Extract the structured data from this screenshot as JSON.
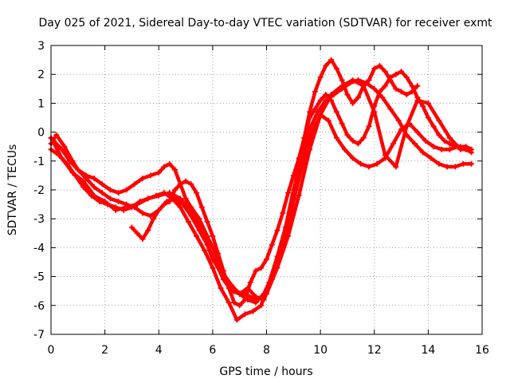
{
  "chart_data": {
    "type": "scatter",
    "title": "Day 025 of 2021, Sidereal Day-to-day VTEC variation (SDTVAR) for receiver exmt",
    "xlabel": "GPS time / hours",
    "ylabel": "SDTVAR / TECUs",
    "xlim": [
      0,
      16
    ],
    "ylim": [
      -7,
      3
    ],
    "xticks": [
      0,
      2,
      4,
      6,
      8,
      10,
      12,
      14,
      16
    ],
    "yticks": [
      -7,
      -6,
      -5,
      -4,
      -3,
      -2,
      -1,
      0,
      1,
      2,
      3
    ],
    "grid": true,
    "marker": "plus",
    "color": "#ff0000",
    "series": [
      {
        "x": [
          0.0,
          0.2,
          0.5,
          0.8,
          1.0,
          1.3,
          1.6,
          1.9,
          2.2,
          2.5,
          2.8,
          3.1,
          3.4,
          3.7,
          4.0,
          4.2,
          4.4,
          4.6,
          4.8,
          5.0,
          5.2,
          5.5,
          5.8,
          6.1,
          6.4,
          6.7,
          7.0,
          7.3,
          7.6,
          7.9,
          8.2,
          8.5,
          8.8,
          9.0,
          9.2,
          9.4,
          9.6,
          9.8,
          10.0,
          10.2,
          10.4,
          10.6,
          10.8,
          11.0,
          11.2,
          11.4,
          11.6,
          11.8,
          12.0,
          12.2,
          12.4,
          12.6,
          12.8,
          13.0,
          13.2,
          13.4,
          13.6
        ],
        "y": [
          -0.4,
          -0.1,
          -0.5,
          -1.0,
          -1.3,
          -1.5,
          -1.6,
          -1.8,
          -2.0,
          -2.1,
          -2.0,
          -1.8,
          -1.6,
          -1.5,
          -1.4,
          -1.2,
          -1.1,
          -1.3,
          -1.8,
          -2.3,
          -2.6,
          -3.0,
          -3.6,
          -4.2,
          -4.9,
          -5.3,
          -5.6,
          -5.8,
          -5.9,
          -5.6,
          -5.0,
          -4.2,
          -3.2,
          -2.3,
          -1.2,
          -0.2,
          0.7,
          1.4,
          1.9,
          2.3,
          2.5,
          2.2,
          1.8,
          1.3,
          1.0,
          1.2,
          1.6,
          1.8,
          2.2,
          2.3,
          2.1,
          1.8,
          1.5,
          1.4,
          1.3,
          1.4,
          1.6
        ]
      },
      {
        "x": [
          0.0,
          0.3,
          0.6,
          0.9,
          1.2,
          1.5,
          1.8,
          2.1,
          2.4,
          2.7,
          3.0,
          3.3,
          3.6,
          3.9,
          4.2,
          4.5,
          4.8,
          5.1,
          5.4,
          5.7,
          6.0,
          6.3,
          6.6,
          6.9,
          7.2,
          7.5,
          7.8,
          8.1,
          8.4,
          8.7,
          9.0,
          9.3,
          9.6,
          9.9,
          10.2,
          10.5,
          10.8,
          11.1,
          11.4,
          11.7,
          12.0,
          12.3,
          12.6,
          12.9,
          13.2,
          13.5,
          13.8,
          14.1,
          14.4,
          14.7,
          15.0,
          15.3,
          15.6
        ],
        "y": [
          -0.6,
          -0.8,
          -1.1,
          -1.5,
          -1.9,
          -2.2,
          -2.4,
          -2.5,
          -2.6,
          -2.7,
          -2.6,
          -2.4,
          -2.3,
          -2.2,
          -2.1,
          -2.3,
          -2.6,
          -3.1,
          -3.6,
          -4.1,
          -4.7,
          -5.4,
          -5.9,
          -6.5,
          -6.3,
          -6.2,
          -6.0,
          -5.2,
          -4.3,
          -3.3,
          -2.0,
          -0.9,
          0.1,
          0.7,
          1.1,
          1.3,
          1.5,
          1.7,
          1.8,
          1.7,
          1.5,
          1.2,
          0.8,
          0.4,
          -0.1,
          -0.4,
          -0.7,
          -0.9,
          -1.1,
          -1.2,
          -1.2,
          -1.1,
          -1.1
        ]
      },
      {
        "x": [
          0.1,
          0.4,
          0.7,
          1.0,
          1.3,
          1.6,
          1.9,
          2.2,
          2.5,
          2.8,
          3.1,
          3.4,
          3.7,
          4.0,
          4.3,
          4.6,
          4.9,
          5.2,
          5.5,
          5.8,
          6.1,
          6.4,
          6.7,
          7.0,
          7.3,
          7.6,
          7.9,
          8.2,
          8.5,
          8.8,
          9.1,
          9.4,
          9.7,
          10.0,
          10.3,
          10.6,
          10.9,
          11.2,
          11.5,
          11.8,
          12.1,
          12.4,
          12.7,
          13.0,
          13.3,
          13.6,
          13.9,
          14.2,
          14.5,
          14.8,
          15.1,
          15.4,
          15.6
        ],
        "y": [
          -0.3,
          -0.6,
          -1.0,
          -1.3,
          -1.6,
          -1.9,
          -2.1,
          -2.3,
          -2.4,
          -2.5,
          -2.6,
          -2.8,
          -2.9,
          -2.7,
          -2.4,
          -2.3,
          -2.5,
          -2.9,
          -3.4,
          -3.9,
          -4.5,
          -5.1,
          -5.5,
          -5.6,
          -5.4,
          -5.7,
          -5.8,
          -5.1,
          -4.2,
          -3.2,
          -2.0,
          -0.9,
          0.0,
          0.6,
          0.4,
          -0.2,
          -0.6,
          -0.9,
          -1.1,
          -1.2,
          -1.1,
          -0.9,
          -0.4,
          0.1,
          0.3,
          0.0,
          -0.3,
          -0.5,
          -0.6,
          -0.6,
          -0.5,
          -0.5,
          -0.6
        ]
      },
      {
        "x": [
          0.0,
          0.4,
          0.8,
          1.2,
          1.6,
          2.0,
          2.4,
          2.8,
          3.2,
          3.6,
          4.0,
          4.4,
          4.8,
          5.2,
          5.6,
          6.0,
          6.4,
          6.8,
          7.2,
          7.6,
          8.0,
          8.4,
          8.8,
          9.2,
          9.6,
          10.0,
          10.4,
          10.8,
          11.2,
          11.6,
          12.0,
          12.4,
          12.8,
          13.2,
          13.6,
          14.0,
          14.4,
          14.8,
          15.2,
          15.6
        ],
        "y": [
          -0.2,
          -0.9,
          -1.4,
          -1.7,
          -2.2,
          -2.4,
          -2.7,
          -2.6,
          -2.5,
          -2.3,
          -2.2,
          -2.1,
          -2.3,
          -2.7,
          -3.4,
          -4.4,
          -5.0,
          -5.5,
          -5.6,
          -5.8,
          -5.6,
          -4.7,
          -3.6,
          -2.2,
          -0.6,
          0.6,
          1.3,
          1.6,
          1.8,
          1.6,
          0.7,
          -0.8,
          -1.2,
          0.2,
          1.1,
          1.0,
          0.4,
          -0.2,
          -0.6,
          -0.6
        ]
      },
      {
        "x": [
          3.0,
          3.2,
          3.4,
          3.6,
          3.8,
          4.0,
          4.2,
          4.4,
          4.6,
          4.8,
          5.0,
          5.2,
          5.4,
          5.6,
          5.8,
          6.0,
          6.2,
          6.4,
          6.6,
          6.8,
          7.0,
          7.2,
          7.4,
          7.6,
          7.8,
          8.0,
          8.2,
          8.4,
          8.6,
          8.8,
          9.0,
          9.2,
          9.4,
          9.6,
          9.8,
          10.0,
          10.2,
          10.4,
          10.6,
          10.8,
          11.0,
          11.2,
          11.4,
          11.6,
          11.8,
          12.0,
          12.2,
          12.4,
          12.6,
          12.8,
          13.0,
          13.2,
          13.4,
          13.6,
          13.8,
          14.0,
          14.2,
          14.4,
          14.6,
          14.8,
          15.0,
          15.2,
          15.4,
          15.6
        ],
        "y": [
          -3.3,
          -3.5,
          -3.7,
          -3.4,
          -3.0,
          -2.7,
          -2.5,
          -2.4,
          -2.0,
          -1.8,
          -1.7,
          -1.8,
          -2.1,
          -2.6,
          -3.1,
          -3.6,
          -4.2,
          -4.8,
          -5.4,
          -5.9,
          -6.0,
          -5.8,
          -5.2,
          -4.8,
          -4.7,
          -4.4,
          -3.9,
          -3.4,
          -2.8,
          -2.1,
          -1.5,
          -0.9,
          -0.2,
          0.5,
          0.8,
          1.1,
          1.3,
          1.1,
          0.7,
          0.3,
          -0.1,
          -0.3,
          -0.4,
          -0.2,
          0.2,
          0.9,
          1.4,
          1.6,
          1.9,
          2.0,
          2.1,
          1.9,
          1.6,
          1.2,
          0.9,
          0.5,
          0.2,
          -0.1,
          -0.3,
          -0.4,
          -0.5,
          -0.5,
          -0.6,
          -0.7
        ]
      }
    ]
  }
}
